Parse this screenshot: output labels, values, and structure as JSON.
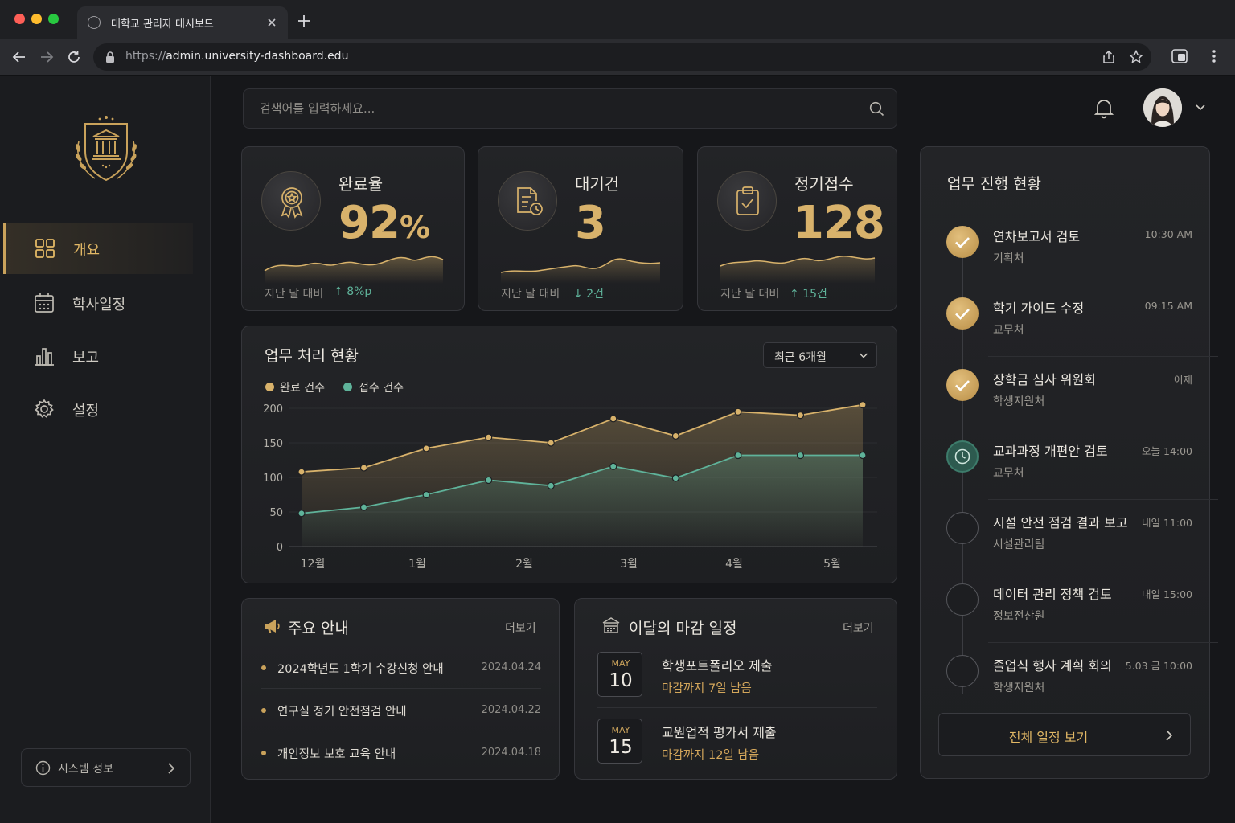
{
  "browser": {
    "tab_title": "대학교 관리자 대시보드",
    "url_protocol": "https://",
    "url_host": "admin.university-dashboard.edu"
  },
  "sidebar": {
    "items": [
      {
        "label": "개요",
        "icon": "grid-icon",
        "active": true
      },
      {
        "label": "학사일정",
        "icon": "calendar-icon",
        "active": false
      },
      {
        "label": "보고",
        "icon": "bar-chart-icon",
        "active": false
      },
      {
        "label": "설정",
        "icon": "gear-icon",
        "active": false
      }
    ],
    "system_info": "시스템 정보"
  },
  "header": {
    "search_placeholder": "검색어를 입력하세요..."
  },
  "kpis": [
    {
      "title": "완료율",
      "value": "92",
      "unit": "%",
      "footer": "지난 달 대비",
      "delta": "8%p",
      "direction": "up",
      "icon": "award-medal-icon"
    },
    {
      "title": "대기건",
      "value": "3",
      "unit": "",
      "footer": "지난 달 대비",
      "delta": "2건",
      "direction": "down",
      "icon": "document-clock-icon"
    },
    {
      "title": "정기접수",
      "value": "128",
      "unit": "",
      "footer": "지난 달 대비",
      "delta": "15건",
      "direction": "up",
      "icon": "clipboard-check-icon"
    }
  ],
  "work_chart": {
    "title": "업무 처리 현황",
    "range": "최근 6개월"
  },
  "chart_data": {
    "type": "line",
    "x_tick_labels": [
      "12월",
      "1월",
      "2월",
      "3월",
      "4월",
      "5월"
    ],
    "ylim": [
      0,
      200
    ],
    "yticks": [
      0,
      50,
      100,
      150,
      200
    ],
    "grid": true,
    "legend_position": "top-left",
    "series": [
      {
        "name": "완료 건수",
        "color": "#d8b26b",
        "values": [
          108,
          114,
          142,
          158,
          150,
          185,
          160,
          195,
          190,
          205
        ]
      },
      {
        "name": "접수 건수",
        "color": "#5fb39a",
        "values": [
          48,
          57,
          75,
          96,
          88,
          116,
          99,
          132,
          132,
          132
        ]
      }
    ]
  },
  "notices": {
    "title": "주요 안내",
    "more": "더보기",
    "items": [
      {
        "title": "2024학년도 1학기 수강신청 안내",
        "date": "2024.04.24"
      },
      {
        "title": "연구실 정기 안전점검 안내",
        "date": "2024.04.22"
      },
      {
        "title": "개인정보 보호 교육 안내",
        "date": "2024.04.18"
      }
    ]
  },
  "deadlines": {
    "title": "이달의 마감 일정",
    "more": "더보기",
    "items": [
      {
        "month": "MAY",
        "day": "10",
        "title": "학생포트폴리오 제출",
        "remaining": "마감까지 7일 남음"
      },
      {
        "month": "MAY",
        "day": "15",
        "title": "교원업적 평가서 제출",
        "remaining": "마감까지 12일 남음"
      }
    ]
  },
  "progress": {
    "title": "업무 진행 현황",
    "view_all": "전체 일정 보기",
    "items": [
      {
        "title": "연차보고서 검토",
        "dept": "기획처",
        "time": "10:30 AM",
        "status": "done"
      },
      {
        "title": "학기 가이드 수정",
        "dept": "교무처",
        "time": "09:15 AM",
        "status": "done"
      },
      {
        "title": "장학금 심사 위원회",
        "dept": "학생지원처",
        "time": "어제",
        "status": "done"
      },
      {
        "title": "교과과정 개편안 검토",
        "dept": "교무처",
        "time": "오늘 14:00",
        "status": "in-progress"
      },
      {
        "title": "시설 안전 점검 결과 보고",
        "dept": "시설관리팀",
        "time": "내일 11:00",
        "status": "pending"
      },
      {
        "title": "데이터 관리 정책 검토",
        "dept": "정보전산원",
        "time": "내일 15:00",
        "status": "pending"
      },
      {
        "title": "졸업식 행사 계획 회의",
        "dept": "학생지원처",
        "time": "5.03 금 10:00",
        "status": "pending"
      }
    ]
  }
}
